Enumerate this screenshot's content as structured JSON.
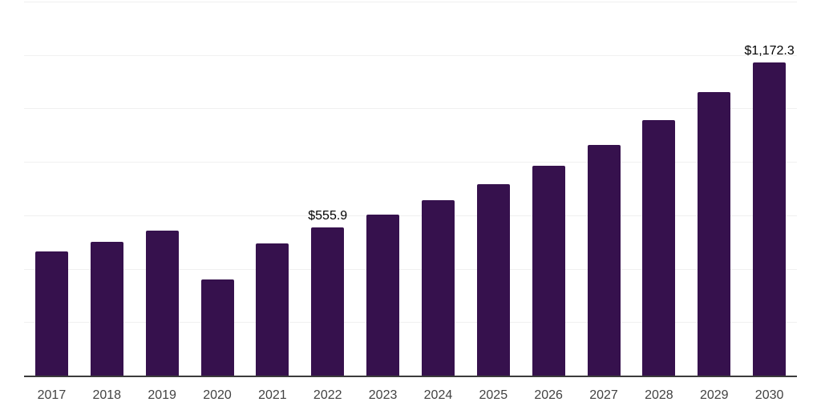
{
  "chart_data": {
    "type": "bar",
    "title": "",
    "xlabel": "",
    "ylabel": "",
    "categories": [
      "2017",
      "2018",
      "2019",
      "2020",
      "2021",
      "2022",
      "2023",
      "2024",
      "2025",
      "2026",
      "2027",
      "2028",
      "2029",
      "2030"
    ],
    "values": [
      466,
      500,
      543,
      360,
      494,
      555.9,
      603,
      657,
      718,
      787,
      864,
      955,
      1061,
      1172.3
    ],
    "data_labels": {
      "2022": "$555.9",
      "2030": "$1,172.3"
    },
    "ylim": [
      0,
      1400
    ],
    "grid": true,
    "gridline_step": 200,
    "y_axis_labels_visible": false,
    "legend_position": "none",
    "bar_color": "#36114d",
    "gridline_color": "#f0f0f0",
    "axis_line_color": "#3b3b3b",
    "tick_label_color": "#424242",
    "data_label_color": "#000000"
  }
}
